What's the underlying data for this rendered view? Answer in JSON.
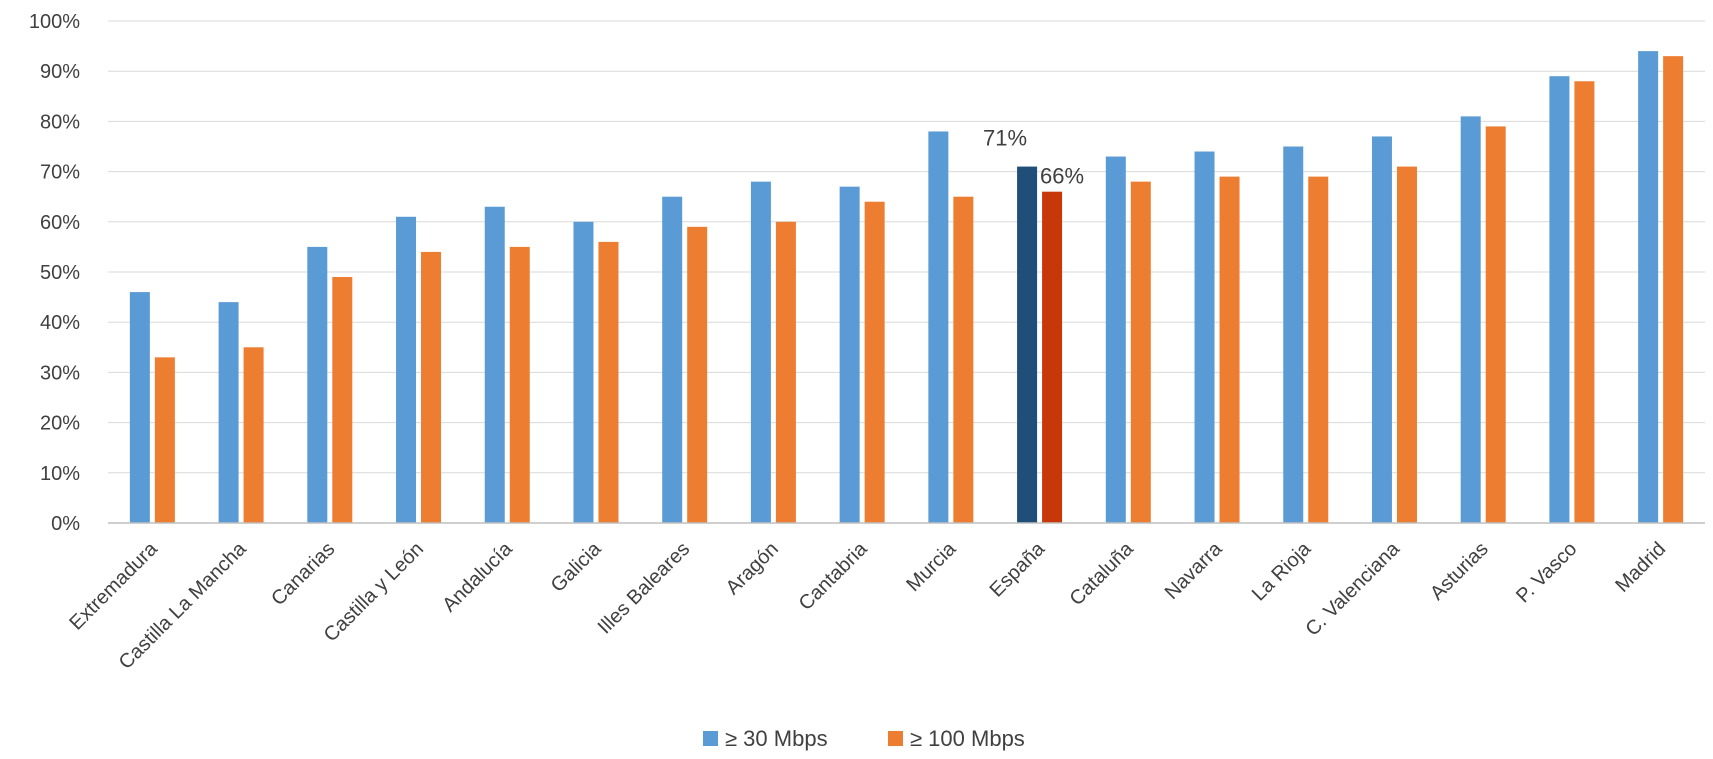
{
  "chart_data": {
    "type": "bar",
    "title": "",
    "xlabel": "",
    "ylabel": "",
    "ylim": [
      0,
      100
    ],
    "y_ticks": [
      "0%",
      "10%",
      "20%",
      "30%",
      "40%",
      "50%",
      "60%",
      "70%",
      "80%",
      "90%",
      "100%"
    ],
    "y_tick_values": [
      0,
      10,
      20,
      30,
      40,
      50,
      60,
      70,
      80,
      90,
      100
    ],
    "grid": true,
    "legend_position": "bottom",
    "categories": [
      "Extremadura",
      "Castilla La Mancha",
      "Canarias",
      "Castilla y León",
      "Andalucía",
      "Galicia",
      "Illes Baleares",
      "Aragón",
      "Cantabria",
      "Murcia",
      "España",
      "Cataluña",
      "Navarra",
      "La Rioja",
      "C. Valenciana",
      "Asturias",
      "P. Vasco",
      "Madrid"
    ],
    "series": [
      {
        "name": "≥ 30 Mbps",
        "color": "#5b9bd5",
        "values": [
          46,
          44,
          55,
          61,
          63,
          60,
          65,
          68,
          67,
          78,
          71,
          73,
          74,
          75,
          77,
          81,
          89,
          94
        ]
      },
      {
        "name": "≥ 100 Mbps",
        "color": "#ed7d31",
        "values": [
          33,
          35,
          49,
          54,
          55,
          56,
          59,
          60,
          64,
          65,
          66,
          68,
          69,
          69,
          71,
          79,
          88,
          93
        ]
      }
    ],
    "highlight": {
      "category": "España",
      "colors": [
        "#1f4e79",
        "#c8370a"
      ],
      "labels": [
        "71%",
        "66%"
      ]
    }
  }
}
